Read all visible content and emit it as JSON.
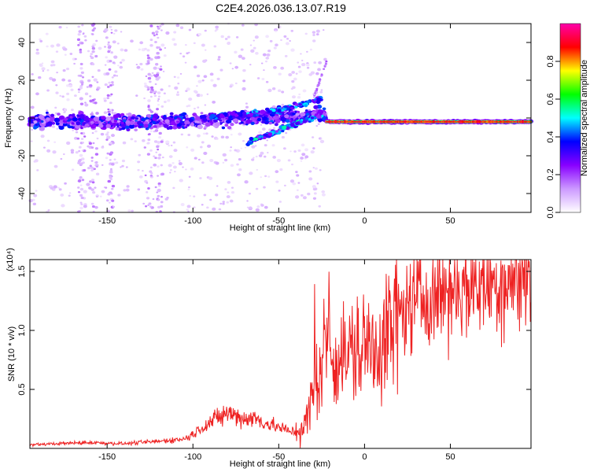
{
  "figure": {
    "title": "C2E4.2026.036.13.07.R19"
  },
  "chart_data": [
    {
      "type": "heatmap",
      "title": "C2E4.2026.036.13.07.R19",
      "xlabel": "Height of straight line (km)",
      "ylabel": "Frequency (Hz)",
      "xlim": [
        -195,
        97
      ],
      "ylim": [
        -50,
        50
      ],
      "xticks": [
        -150,
        -100,
        -50,
        0,
        50
      ],
      "yticks": [
        -40,
        -20,
        0,
        20,
        40
      ],
      "colorbar": {
        "label": "Normalized spectral amplitude",
        "range": [
          0,
          1
        ],
        "ticks": [
          0.0,
          0.2,
          0.4,
          0.6,
          0.8
        ],
        "colormap": [
          "#ffffff",
          "#cc99ff",
          "#8800ff",
          "#0000ff",
          "#00ffff",
          "#00ff00",
          "#ffff00",
          "#ff0000",
          "#ff00aa"
        ]
      },
      "features": {
        "baseline_frequency_hz": -2,
        "strong_line_start_km": -22,
        "upper_branch": {
          "from_km": -90,
          "to_km": -25,
          "freq_from_hz": 1,
          "freq_to_hz": 10
        },
        "lower_branch": {
          "from_km": -68,
          "to_km": -25,
          "freq_from_hz": -13,
          "freq_to_hz": 2
        }
      }
    },
    {
      "type": "line",
      "xlabel": "Height of straight line (km)",
      "ylabel": "SNR (10 * v/v)",
      "y_multiplier": "(x10⁴)",
      "xlim": [
        -195,
        97
      ],
      "ylim": [
        0,
        1.6
      ],
      "xticks": [
        -150,
        -100,
        -50,
        0,
        50
      ],
      "yticks": [
        0.5,
        1.0,
        1.5
      ],
      "color": "#ee2222",
      "series": [
        {
          "name": "SNR",
          "x": [
            -195,
            -180,
            -160,
            -140,
            -120,
            -105,
            -100,
            -95,
            -90,
            -85,
            -80,
            -75,
            -70,
            -65,
            -60,
            -55,
            -50,
            -45,
            -40,
            -35,
            -30,
            -28,
            -25,
            -23,
            -20,
            -15,
            -10,
            -5,
            0,
            5,
            10,
            15,
            20,
            25,
            30,
            40,
            50,
            60,
            70,
            80,
            90,
            97
          ],
          "values": [
            0.03,
            0.04,
            0.05,
            0.04,
            0.06,
            0.08,
            0.12,
            0.18,
            0.22,
            0.26,
            0.3,
            0.28,
            0.25,
            0.26,
            0.23,
            0.2,
            0.18,
            0.15,
            0.14,
            0.18,
            0.45,
            0.62,
            0.72,
            0.75,
            0.76,
            0.78,
            0.8,
            0.82,
            0.86,
            0.88,
            0.9,
            1.0,
            1.12,
            1.2,
            1.25,
            1.32,
            1.36,
            1.38,
            1.4,
            1.42,
            1.43,
            1.44
          ]
        }
      ]
    }
  ]
}
